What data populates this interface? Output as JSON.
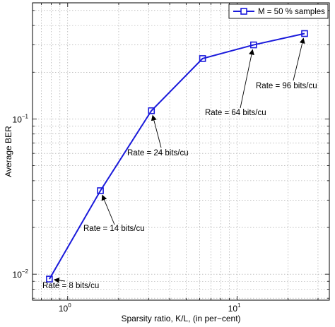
{
  "chart_data": {
    "type": "line",
    "xscale": "log",
    "yscale": "log",
    "xlim": [
      0.62,
      35
    ],
    "ylim": [
      0.0068,
      0.56
    ],
    "xlabel": "Sparsity ratio, K/L, (in per−cent)",
    "ylabel": "Average BER",
    "x_ticks": [
      {
        "base": "10",
        "exp": "0",
        "value": 1
      },
      {
        "base": "10",
        "exp": "1",
        "value": 10
      }
    ],
    "y_ticks": [
      {
        "base": "10",
        "exp": "−2",
        "value": 0.01
      },
      {
        "base": "10",
        "exp": "−1",
        "value": 0.1
      }
    ],
    "grid": true,
    "legend_position": "top-right",
    "series": [
      {
        "name": "M = 50 % samples",
        "color": "#1a1adb",
        "marker": "square",
        "x": [
          0.78,
          1.56,
          3.12,
          6.25,
          12.5,
          25
        ],
        "y": [
          0.0093,
          0.0345,
          0.113,
          0.245,
          0.3,
          0.355
        ]
      }
    ],
    "annotations": [
      {
        "text": "Rate = 8 bits/cu",
        "point_index": 0
      },
      {
        "text": "Rate = 14 bits/cu",
        "point_index": 1
      },
      {
        "text": "Rate = 24 bits/cu",
        "point_index": 2
      },
      {
        "text": "Rate = 64 bits/cu",
        "point_index": 4
      },
      {
        "text": "Rate = 96 bits/cu",
        "point_index": 5
      }
    ]
  }
}
